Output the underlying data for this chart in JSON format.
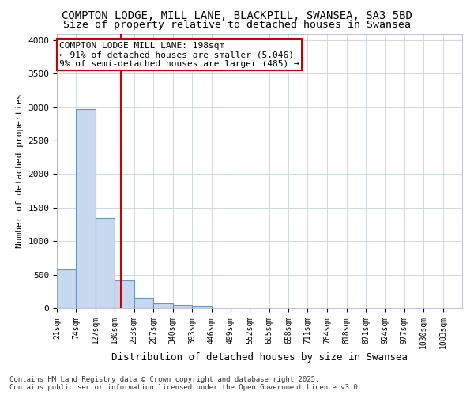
{
  "title1": "COMPTON LODGE, MILL LANE, BLACKPILL, SWANSEA, SA3 5BD",
  "title2": "Size of property relative to detached houses in Swansea",
  "xlabel": "Distribution of detached houses by size in Swansea",
  "ylabel": "Number of detached properties",
  "bin_labels": [
    "21sqm",
    "74sqm",
    "127sqm",
    "180sqm",
    "233sqm",
    "287sqm",
    "340sqm",
    "393sqm",
    "446sqm",
    "499sqm",
    "552sqm",
    "605sqm",
    "658sqm",
    "711sqm",
    "764sqm",
    "818sqm",
    "871sqm",
    "924sqm",
    "977sqm",
    "1030sqm",
    "1083sqm"
  ],
  "bin_edges": [
    21,
    74,
    127,
    180,
    233,
    287,
    340,
    393,
    446,
    499,
    552,
    605,
    658,
    711,
    764,
    818,
    871,
    924,
    977,
    1030,
    1083
  ],
  "bar_values": [
    580,
    2970,
    1340,
    415,
    155,
    75,
    45,
    35,
    0,
    0,
    0,
    0,
    0,
    0,
    0,
    0,
    0,
    0,
    0,
    0
  ],
  "bar_color": "#c8d8ee",
  "bar_edge_color": "#6699bb",
  "property_value": 198,
  "vline_color": "#cc0000",
  "annotation_text": "COMPTON LODGE MILL LANE: 198sqm\n← 91% of detached houses are smaller (5,046)\n9% of semi-detached houses are larger (485) →",
  "annotation_box_color": "white",
  "annotation_box_edge": "#cc0000",
  "ylim": [
    0,
    4100
  ],
  "yticks": [
    0,
    500,
    1000,
    1500,
    2000,
    2500,
    3000,
    3500,
    4000
  ],
  "background_color": "#ffffff",
  "grid_color": "#d0d8e8",
  "footer_text": "Contains HM Land Registry data © Crown copyright and database right 2025.\nContains public sector information licensed under the Open Government Licence v3.0.",
  "title_fontsize": 10,
  "subtitle_fontsize": 9.5,
  "annotation_fontsize": 8,
  "ylabel_fontsize": 8,
  "xlabel_fontsize": 9,
  "footer_fontsize": 6.5,
  "ytick_fontsize": 8,
  "xtick_fontsize": 7
}
